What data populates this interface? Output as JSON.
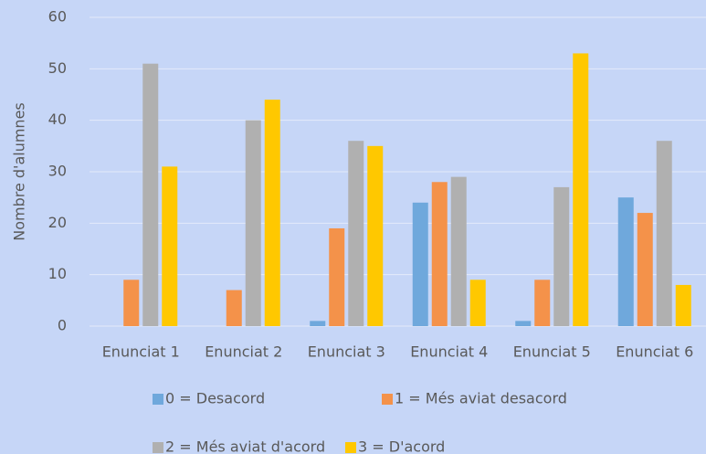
{
  "chart_data": {
    "type": "bar",
    "y_label": "Nombre d'alumnes",
    "categories": [
      "Enunciat 1",
      "Enunciat 2",
      "Enunciat 3",
      "Enunciat 4",
      "Enunciat 5",
      "Enunciat 6"
    ],
    "series": [
      {
        "name": "0 = Desacord",
        "color": "#6fa8dc",
        "values": [
          0,
          0,
          1,
          24,
          1,
          25
        ]
      },
      {
        "name": "1 = Més aviat desacord",
        "color": "#f4924a",
        "values": [
          9,
          7,
          19,
          28,
          9,
          22
        ]
      },
      {
        "name": "2 = Més aviat d'acord",
        "color": "#b0b0b0",
        "values": [
          51,
          40,
          36,
          29,
          27,
          36
        ]
      },
      {
        "name": "3 = D'acord",
        "color": "#ffc800",
        "values": [
          31,
          44,
          35,
          9,
          53,
          8
        ]
      }
    ],
    "ylim": [
      0,
      60
    ],
    "yticks": [
      0,
      10,
      20,
      30,
      40,
      50,
      60
    ],
    "grid": true,
    "legend": "bottom"
  }
}
